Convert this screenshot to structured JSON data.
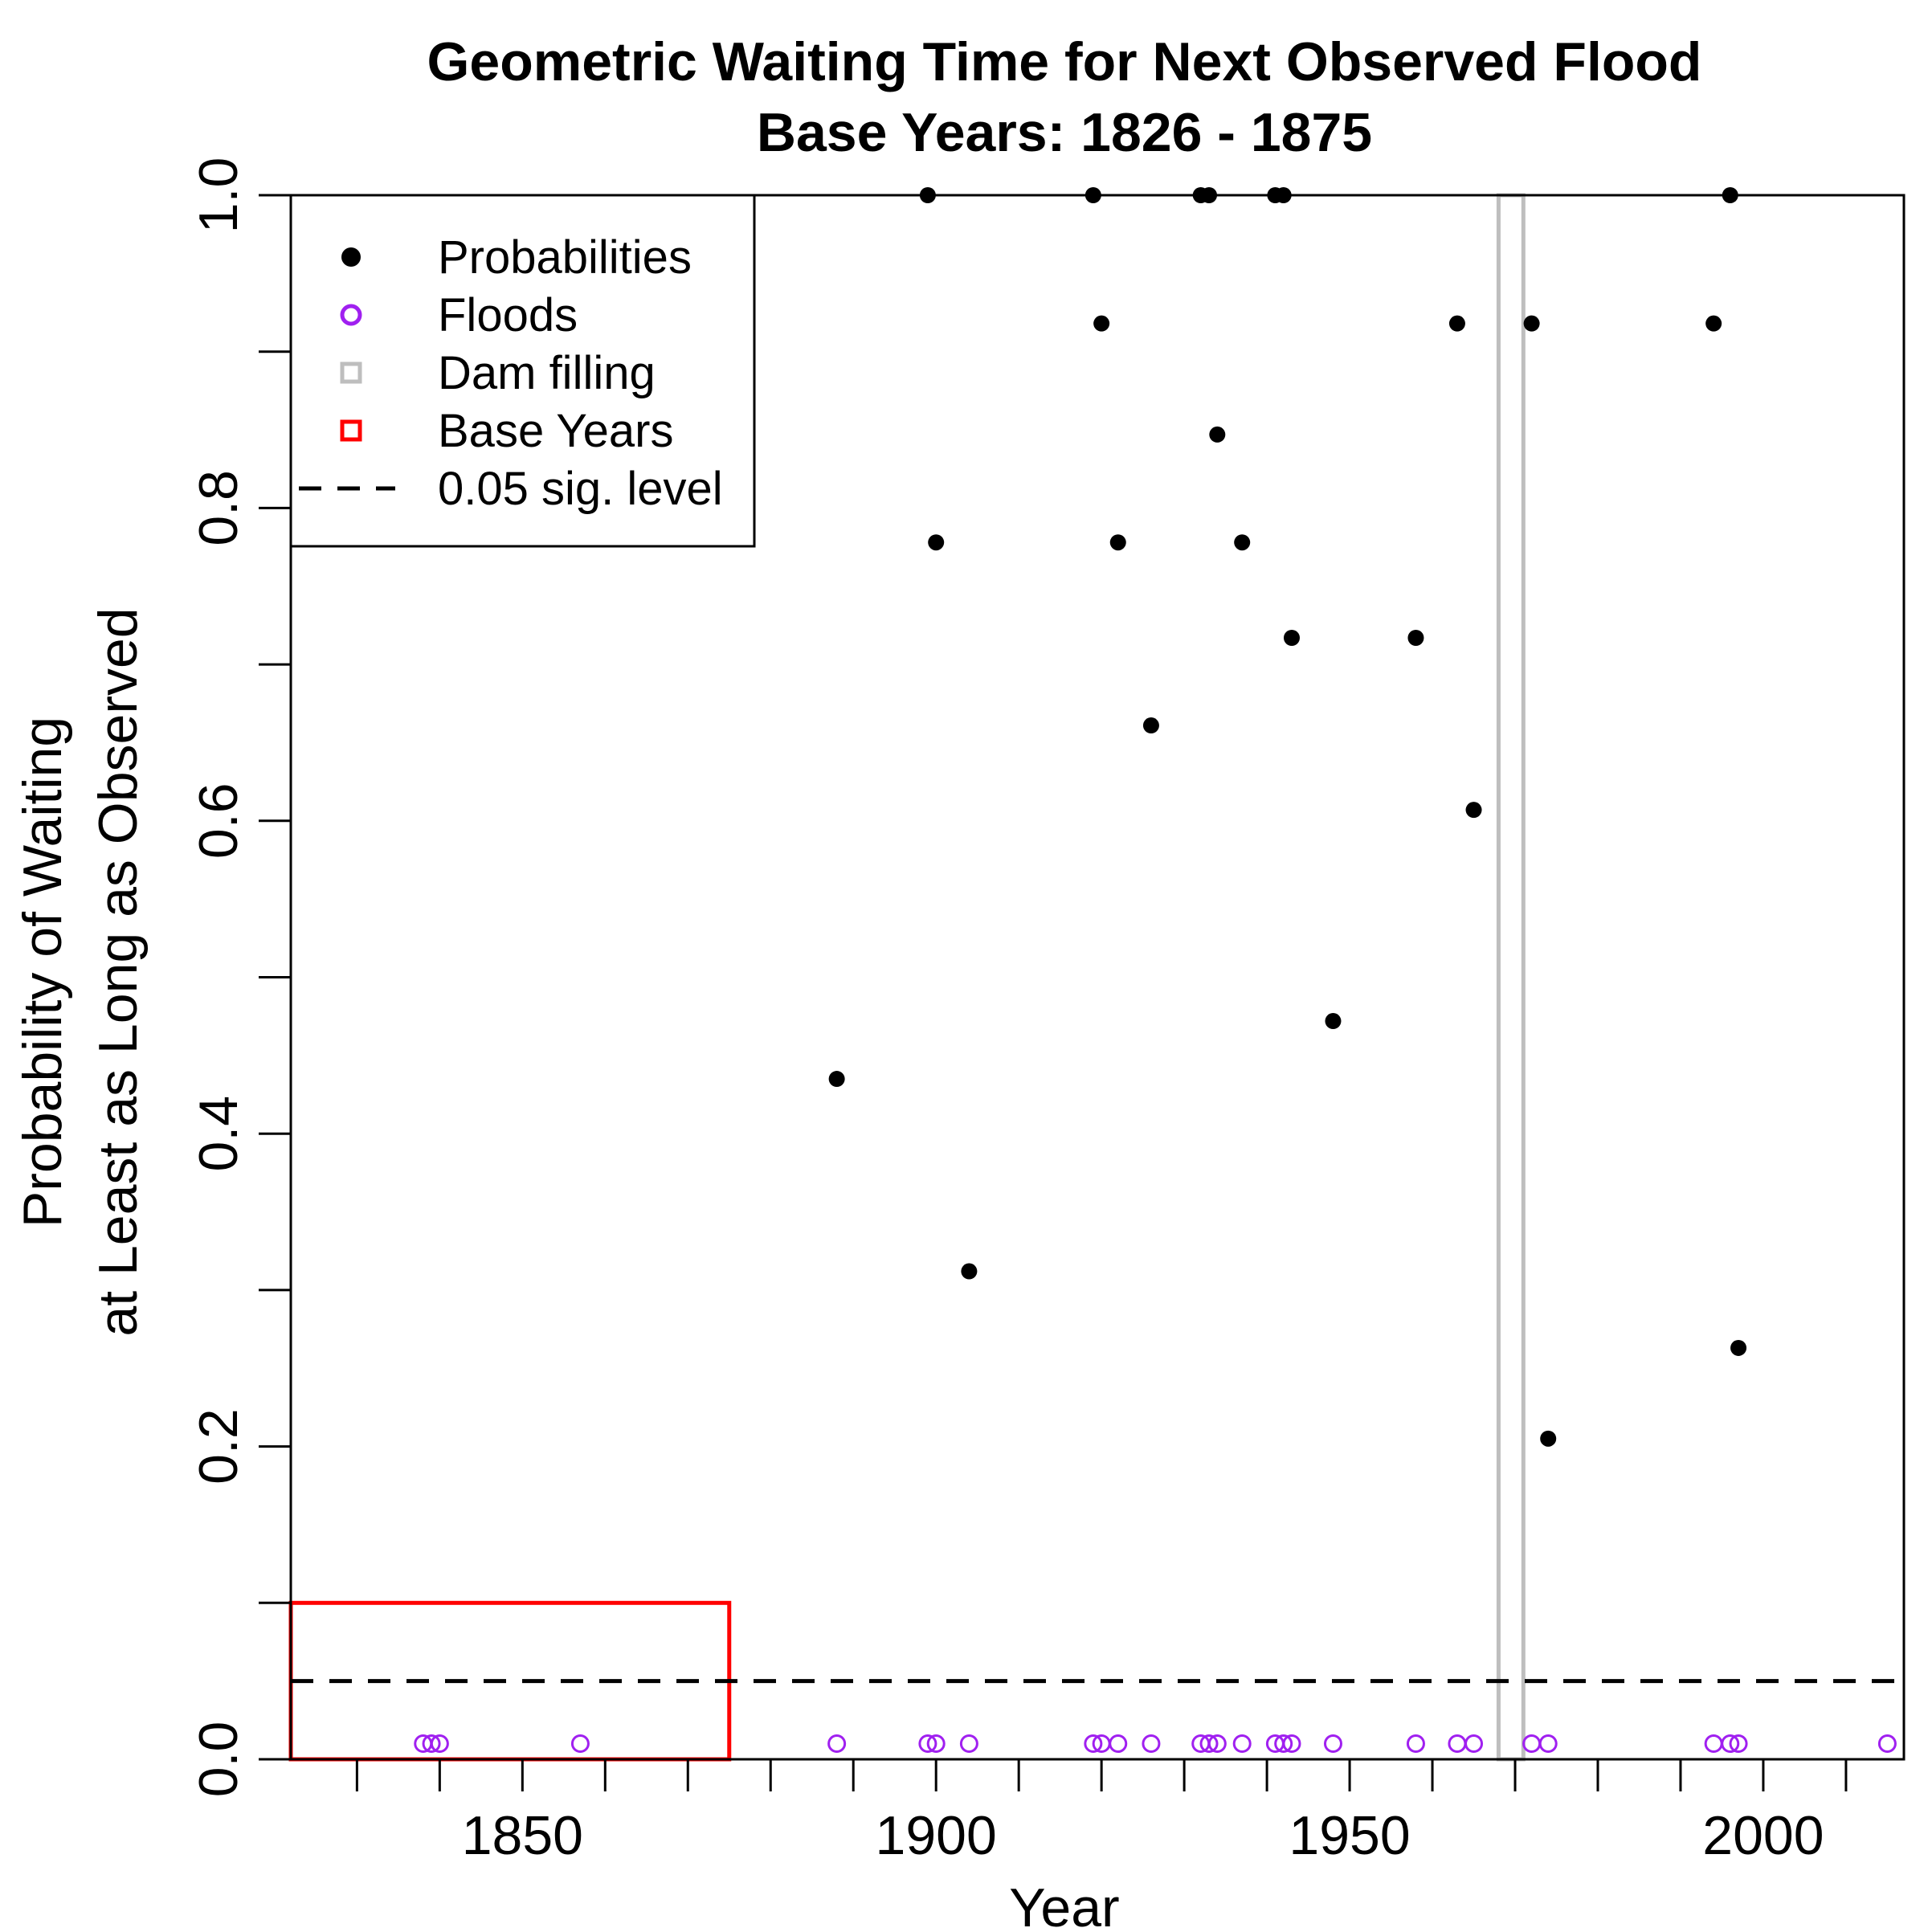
{
  "chart_data": {
    "type": "scatter",
    "title": "Geometric Waiting Time for Next Observed Flood",
    "subtitle": "Base Years: 1826 - 1875",
    "xlabel": "Year",
    "ylabel_line1": "Probability of Waiting",
    "ylabel_line2": "at Least as Long as Observed",
    "xlim": [
      1822,
      2017
    ],
    "ylim": [
      0,
      1
    ],
    "x_ticks": [
      1830,
      1840,
      1850,
      1860,
      1870,
      1880,
      1890,
      1900,
      1910,
      1920,
      1930,
      1940,
      1950,
      1960,
      1970,
      1980,
      1990,
      2000,
      2010
    ],
    "x_tick_labels": [
      {
        "value": 1850,
        "label": "1850"
      },
      {
        "value": 1900,
        "label": "1900"
      },
      {
        "value": 1950,
        "label": "1950"
      },
      {
        "value": 2000,
        "label": "2000"
      }
    ],
    "y_ticks": [
      0,
      0.1,
      0.2,
      0.3,
      0.4,
      0.5,
      0.6,
      0.7,
      0.8,
      0.9,
      1.0
    ],
    "y_tick_labels": [
      {
        "value": 0,
        "label": "0.0"
      },
      {
        "value": 0.2,
        "label": "0.2"
      },
      {
        "value": 0.4,
        "label": "0.4"
      },
      {
        "value": 0.6,
        "label": "0.6"
      },
      {
        "value": 0.8,
        "label": "0.8"
      },
      {
        "value": 1.0,
        "label": "1.0"
      }
    ],
    "series": [
      {
        "name": "Probabilities",
        "marker": "filled-circle",
        "color": "#000000",
        "points": [
          {
            "x": 1888,
            "y": 0.435
          },
          {
            "x": 1899,
            "y": 1.0
          },
          {
            "x": 1900,
            "y": 0.778
          },
          {
            "x": 1904,
            "y": 0.312
          },
          {
            "x": 1919,
            "y": 1.0
          },
          {
            "x": 1920,
            "y": 0.918
          },
          {
            "x": 1922,
            "y": 0.778
          },
          {
            "x": 1926,
            "y": 0.661
          },
          {
            "x": 1932,
            "y": 1.0
          },
          {
            "x": 1933,
            "y": 1.0
          },
          {
            "x": 1934,
            "y": 0.847
          },
          {
            "x": 1937,
            "y": 0.778
          },
          {
            "x": 1941,
            "y": 1.0
          },
          {
            "x": 1942,
            "y": 1.0
          },
          {
            "x": 1943,
            "y": 0.717
          },
          {
            "x": 1948,
            "y": 0.472
          },
          {
            "x": 1958,
            "y": 0.717
          },
          {
            "x": 1963,
            "y": 0.918
          },
          {
            "x": 1965,
            "y": 0.607
          },
          {
            "x": 1972,
            "y": 0.918
          },
          {
            "x": 1974,
            "y": 0.205
          },
          {
            "x": 1994,
            "y": 0.918
          },
          {
            "x": 1996,
            "y": 1.0
          },
          {
            "x": 1997,
            "y": 0.263
          }
        ]
      },
      {
        "name": "Floods",
        "marker": "open-circle",
        "color": "#A020F0",
        "y": 0.01,
        "x": [
          1838,
          1839,
          1840,
          1857,
          1888,
          1899,
          1900,
          1904,
          1919,
          1920,
          1922,
          1926,
          1932,
          1933,
          1934,
          1937,
          1941,
          1942,
          1943,
          1948,
          1958,
          1963,
          1965,
          1972,
          1974,
          1994,
          1996,
          1997,
          2015
        ]
      }
    ],
    "regions": [
      {
        "name": "Dam filling",
        "x_range": [
          1968,
          1971
        ],
        "y_range": [
          0,
          1.0
        ],
        "color": "#BEBEBE"
      },
      {
        "name": "Base Years",
        "x_range": [
          1822,
          1875
        ],
        "y_range": [
          0,
          0.1
        ],
        "color": "#FF0000"
      }
    ],
    "reference_line": {
      "name": "0.05 sig. level",
      "y": 0.05,
      "style": "dashed",
      "color": "#000000"
    },
    "legend": {
      "position": "top-left",
      "entries": [
        {
          "label": "Probabilities",
          "symbol": "filled-circle",
          "color": "#000000"
        },
        {
          "label": "Floods",
          "symbol": "open-circle",
          "color": "#A020F0"
        },
        {
          "label": "Dam filling",
          "symbol": "open-square",
          "color": "#BEBEBE"
        },
        {
          "label": "Base Years",
          "symbol": "open-square",
          "color": "#FF0000"
        },
        {
          "label": "0.05 sig. level",
          "symbol": "dashed-line",
          "color": "#000000"
        }
      ]
    }
  }
}
